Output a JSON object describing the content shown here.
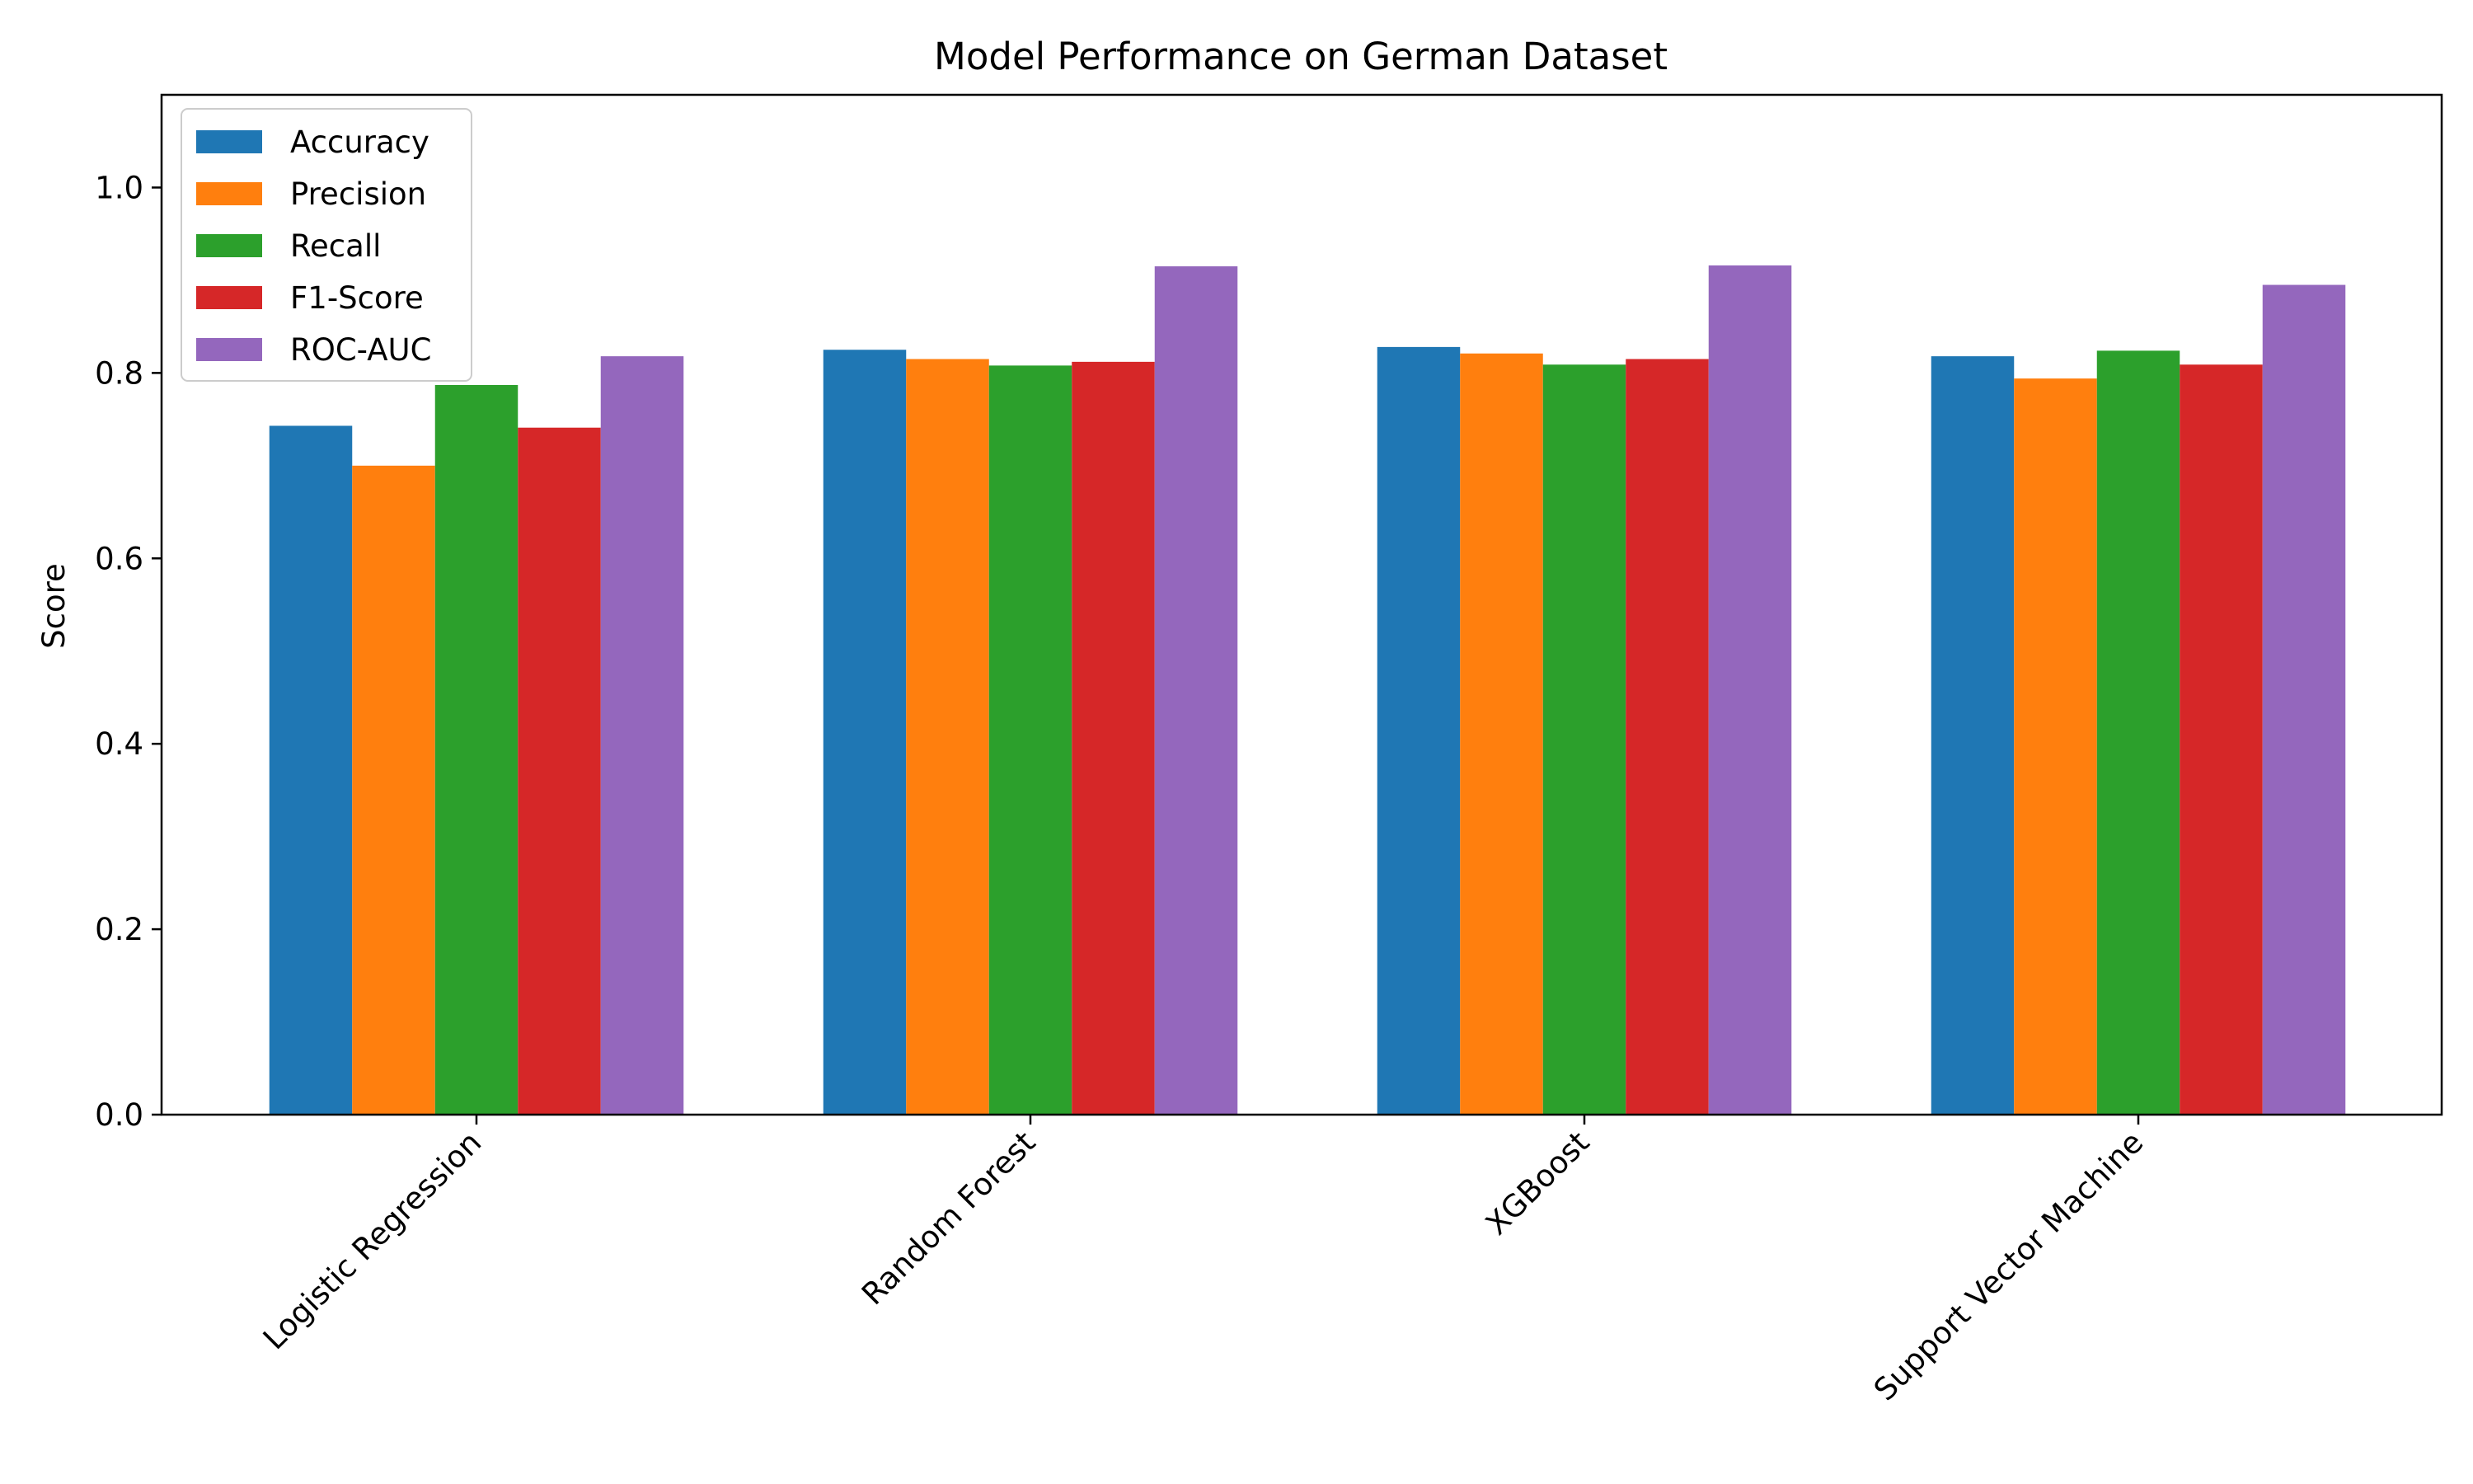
{
  "chart_data": {
    "type": "bar",
    "title": "Model Performance on German Dataset",
    "xlabel": "",
    "ylabel": "Score",
    "ylim": [
      0,
      1.1
    ],
    "yticks": [
      0.0,
      0.2,
      0.4,
      0.6,
      0.8,
      1.0
    ],
    "ytick_labels": [
      "0.0",
      "0.2",
      "0.4",
      "0.6",
      "0.8",
      "1.0"
    ],
    "categories": [
      "Logistic Regression",
      "Random Forest",
      "XGBoost",
      "Support Vector Machine"
    ],
    "series": [
      {
        "name": "Accuracy",
        "color": "#1f77b4",
        "values": [
          0.743,
          0.825,
          0.828,
          0.818
        ]
      },
      {
        "name": "Precision",
        "color": "#ff7f0e",
        "values": [
          0.7,
          0.815,
          0.821,
          0.794
        ]
      },
      {
        "name": "Recall",
        "color": "#2ca02c",
        "values": [
          0.787,
          0.808,
          0.809,
          0.824
        ]
      },
      {
        "name": "F1-Score",
        "color": "#d62728",
        "values": [
          0.741,
          0.812,
          0.815,
          0.809
        ]
      },
      {
        "name": "ROC-AUC",
        "color": "#9467bd",
        "values": [
          0.818,
          0.915,
          0.916,
          0.895
        ]
      }
    ],
    "grid": false,
    "legend_position": "top-left"
  }
}
